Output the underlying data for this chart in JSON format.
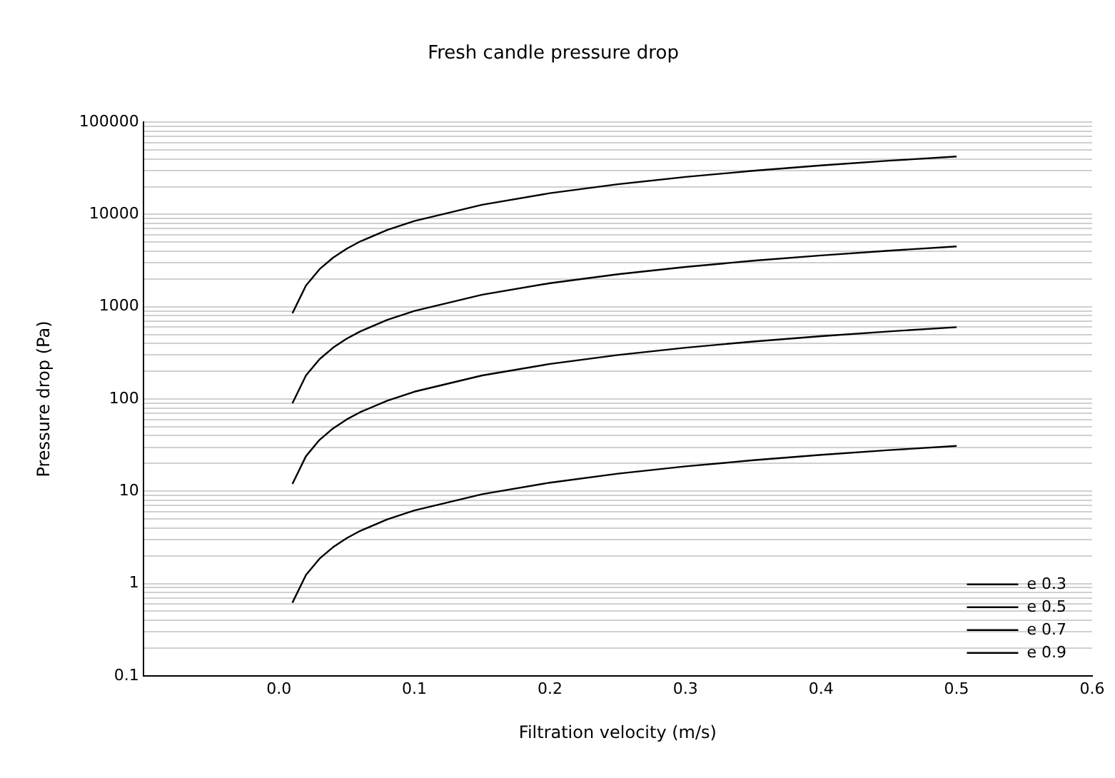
{
  "chart_data": {
    "type": "line",
    "title": "Fresh candle pressure drop",
    "xlabel": "Filtration velocity (m/s)",
    "ylabel": "Pressure drop (Pa)",
    "x": [
      0.01,
      0.02,
      0.03,
      0.04,
      0.05,
      0.06,
      0.08,
      0.1,
      0.15,
      0.2,
      0.25,
      0.3,
      0.35,
      0.4,
      0.45,
      0.5
    ],
    "series": [
      {
        "name": "e 0.3",
        "color": "#000000",
        "values": [
          850,
          1700,
          2550,
          3400,
          4250,
          5100,
          6800,
          8500,
          12750,
          17000,
          21250,
          25500,
          29750,
          34000,
          38250,
          42500
        ]
      },
      {
        "name": "e 0.5",
        "color": "#000000",
        "values": [
          90,
          180,
          270,
          360,
          450,
          540,
          720,
          900,
          1350,
          1800,
          2250,
          2700,
          3150,
          3600,
          4050,
          4500
        ]
      },
      {
        "name": "e 0.7",
        "color": "#000000",
        "values": [
          12,
          24,
          36,
          48,
          60,
          72,
          96,
          120,
          180,
          240,
          300,
          360,
          420,
          480,
          540,
          600
        ]
      },
      {
        "name": "e 0.9",
        "color": "#000000",
        "values": [
          0.62,
          1.24,
          1.86,
          2.48,
          3.1,
          3.72,
          4.96,
          6.2,
          9.3,
          12.4,
          15.5,
          18.6,
          21.7,
          24.8,
          27.9,
          31
        ]
      }
    ],
    "xlim": [
      -0.1,
      0.6
    ],
    "xticks": [
      {
        "value": 0,
        "label": "0.0"
      },
      0.1,
      0.2,
      0.3,
      0.4,
      0.5,
      0.6
    ],
    "ylim": [
      0.1,
      100000
    ],
    "log": "y",
    "yticks": [
      0.1,
      {
        "value": 0.2,
        "label": null
      },
      {
        "value": 0.3,
        "label": null
      },
      {
        "value": 0.4,
        "label": null
      },
      {
        "value": 0.5,
        "label": null
      },
      {
        "value": 0.6,
        "label": null
      },
      {
        "value": 0.7,
        "label": null
      },
      {
        "value": 0.8,
        "label": null
      },
      {
        "value": 0.9,
        "label": null
      },
      1,
      {
        "value": 2,
        "label": null
      },
      {
        "value": 3,
        "label": null
      },
      {
        "value": 4,
        "label": null
      },
      {
        "value": 5,
        "label": null
      },
      {
        "value": 6,
        "label": null
      },
      {
        "value": 7,
        "label": null
      },
      {
        "value": 8,
        "label": null
      },
      {
        "value": 9,
        "label": null
      },
      10,
      {
        "value": 20,
        "label": null
      },
      {
        "value": 30,
        "label": null
      },
      {
        "value": 40,
        "label": null
      },
      {
        "value": 50,
        "label": null
      },
      {
        "value": 60,
        "label": null
      },
      {
        "value": 70,
        "label": null
      },
      {
        "value": 80,
        "label": null
      },
      {
        "value": 90,
        "label": null
      },
      100,
      {
        "value": 200,
        "label": null
      },
      {
        "value": 300,
        "label": null
      },
      {
        "value": 400,
        "label": null
      },
      {
        "value": 500,
        "label": null
      },
      {
        "value": 600,
        "label": null
      },
      {
        "value": 700,
        "label": null
      },
      {
        "value": 800,
        "label": null
      },
      {
        "value": 900,
        "label": null
      },
      1000,
      {
        "value": 2000,
        "label": null
      },
      {
        "value": 3000,
        "label": null
      },
      {
        "value": 4000,
        "label": null
      },
      {
        "value": 5000,
        "label": null
      },
      {
        "value": 6000,
        "label": null
      },
      {
        "value": 7000,
        "label": null
      },
      {
        "value": 8000,
        "label": null
      },
      {
        "value": 9000,
        "label": null
      },
      10000,
      {
        "value": 20000,
        "label": null
      },
      {
        "value": 30000,
        "label": null
      },
      {
        "value": 40000,
        "label": null
      },
      {
        "value": 50000,
        "label": null
      },
      {
        "value": 60000,
        "label": null
      },
      {
        "value": 70000,
        "label": null
      },
      {
        "value": 80000,
        "label": null
      },
      {
        "value": 90000,
        "label": null
      },
      100000
    ],
    "grid": "y",
    "legend": "bottom right",
    "marker": "none",
    "line_style": "solid"
  }
}
